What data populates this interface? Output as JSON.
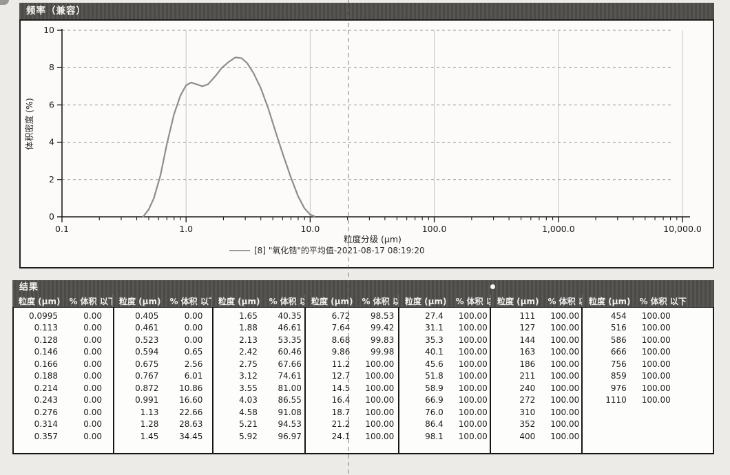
{
  "chart_data": {
    "type": "line",
    "title": "频率（兼容）",
    "xlabel": "粒度分级 (μm)",
    "ylabel": "体积密度 (%)",
    "x_scale": "log",
    "xlim": [
      0.1,
      10000
    ],
    "ylim": [
      0,
      10
    ],
    "grid": true,
    "legend_position": "bottom",
    "x_tick_labels": [
      "0.1",
      "1.0",
      "10.0",
      "100.0",
      "1,000.0",
      "10,000.0"
    ],
    "y_tick_values": [
      0,
      2,
      4,
      6,
      8,
      10
    ],
    "series": [
      {
        "name": "[8] \"氧化锆\"的平均值-2021-08-17 08:19:20",
        "color": "#8d8d8d",
        "x": [
          0.45,
          0.5,
          0.55,
          0.62,
          0.7,
          0.8,
          0.9,
          1.0,
          1.1,
          1.22,
          1.35,
          1.5,
          1.7,
          1.95,
          2.2,
          2.5,
          2.8,
          3.1,
          3.5,
          4.0,
          4.6,
          5.3,
          6.0,
          7.0,
          8.0,
          9.0,
          10.0,
          10.8
        ],
        "y": [
          0,
          0.4,
          1.0,
          2.2,
          3.9,
          5.5,
          6.5,
          7.05,
          7.2,
          7.1,
          7.0,
          7.1,
          7.5,
          8.0,
          8.3,
          8.55,
          8.5,
          8.25,
          7.7,
          6.9,
          5.8,
          4.5,
          3.4,
          2.1,
          1.1,
          0.45,
          0.12,
          0.03
        ]
      }
    ],
    "legend_label": "[8] \"氧化锆\"的平均值-2021-08-17 08:19:20"
  },
  "table": {
    "title": "结果",
    "col_size_header": "粒度 (μm)",
    "col_pct_header": "% 体积 以下",
    "groups": [
      [
        [
          "0.0995",
          "0.00"
        ],
        [
          "0.113",
          "0.00"
        ],
        [
          "0.128",
          "0.00"
        ],
        [
          "0.146",
          "0.00"
        ],
        [
          "0.166",
          "0.00"
        ],
        [
          "0.188",
          "0.00"
        ],
        [
          "0.214",
          "0.00"
        ],
        [
          "0.243",
          "0.00"
        ],
        [
          "0.276",
          "0.00"
        ],
        [
          "0.314",
          "0.00"
        ],
        [
          "0.357",
          "0.00"
        ]
      ],
      [
        [
          "0.405",
          "0.00"
        ],
        [
          "0.461",
          "0.00"
        ],
        [
          "0.523",
          "0.00"
        ],
        [
          "0.594",
          "0.65"
        ],
        [
          "0.675",
          "2.56"
        ],
        [
          "0.767",
          "6.01"
        ],
        [
          "0.872",
          "10.86"
        ],
        [
          "0.991",
          "16.60"
        ],
        [
          "1.13",
          "22.66"
        ],
        [
          "1.28",
          "28.63"
        ],
        [
          "1.45",
          "34.45"
        ]
      ],
      [
        [
          "1.65",
          "40.35"
        ],
        [
          "1.88",
          "46.61"
        ],
        [
          "2.13",
          "53.35"
        ],
        [
          "2.42",
          "60.46"
        ],
        [
          "2.75",
          "67.66"
        ],
        [
          "3.12",
          "74.61"
        ],
        [
          "3.55",
          "81.00"
        ],
        [
          "4.03",
          "86.55"
        ],
        [
          "4.58",
          "91.08"
        ],
        [
          "5.21",
          "94.53"
        ],
        [
          "5.92",
          "96.97"
        ]
      ],
      [
        [
          "6.72",
          "98.53"
        ],
        [
          "7.64",
          "99.42"
        ],
        [
          "8.68",
          "99.83"
        ],
        [
          "9.86",
          "99.98"
        ],
        [
          "11.2",
          "100.00"
        ],
        [
          "12.7",
          "100.00"
        ],
        [
          "14.5",
          "100.00"
        ],
        [
          "16.4",
          "100.00"
        ],
        [
          "18.7",
          "100.00"
        ],
        [
          "21.2",
          "100.00"
        ],
        [
          "24.1",
          "100.00"
        ]
      ],
      [
        [
          "27.4",
          "100.00"
        ],
        [
          "31.1",
          "100.00"
        ],
        [
          "35.3",
          "100.00"
        ],
        [
          "40.1",
          "100.00"
        ],
        [
          "45.6",
          "100.00"
        ],
        [
          "51.8",
          "100.00"
        ],
        [
          "58.9",
          "100.00"
        ],
        [
          "66.9",
          "100.00"
        ],
        [
          "76.0",
          "100.00"
        ],
        [
          "86.4",
          "100.00"
        ],
        [
          "98.1",
          "100.00"
        ]
      ],
      [
        [
          "111",
          "100.00"
        ],
        [
          "127",
          "100.00"
        ],
        [
          "144",
          "100.00"
        ],
        [
          "163",
          "100.00"
        ],
        [
          "186",
          "100.00"
        ],
        [
          "211",
          "100.00"
        ],
        [
          "240",
          "100.00"
        ],
        [
          "272",
          "100.00"
        ],
        [
          "310",
          "100.00"
        ],
        [
          "352",
          "100.00"
        ],
        [
          "400",
          "100.00"
        ]
      ],
      [
        [
          "454",
          "100.00"
        ],
        [
          "516",
          "100.00"
        ],
        [
          "586",
          "100.00"
        ],
        [
          "666",
          "100.00"
        ],
        [
          "756",
          "100.00"
        ],
        [
          "859",
          "100.00"
        ],
        [
          "976",
          "100.00"
        ],
        [
          "1110",
          "100.00"
        ]
      ]
    ]
  },
  "colors": {
    "header_bar": "#504e4b",
    "curve": "#8d8d8d",
    "axis": "#1c1c1c",
    "grid_dash": "#909090",
    "page_bg": "#edebe7"
  }
}
